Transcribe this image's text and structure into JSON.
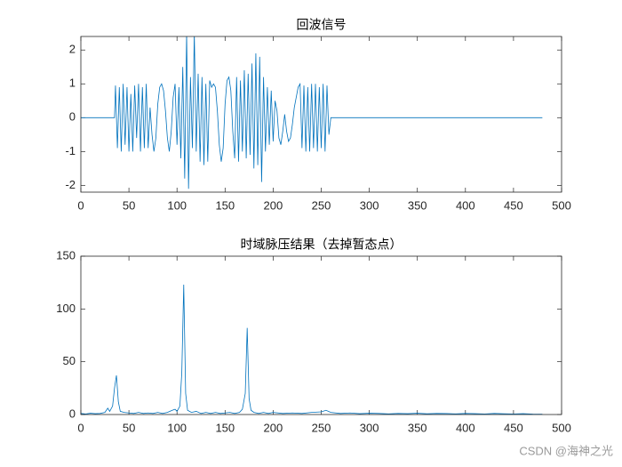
{
  "chart_data": [
    {
      "type": "line",
      "title": "回波信号",
      "color": "#0072bd",
      "x": [
        0,
        35,
        36,
        38,
        40,
        42,
        44,
        46,
        48,
        50,
        52,
        54,
        56,
        58,
        60,
        62,
        64,
        66,
        68,
        70,
        72,
        74,
        76,
        78,
        80,
        82,
        84,
        86,
        88,
        90,
        92,
        94,
        96,
        98,
        100,
        102,
        104,
        106,
        108,
        110,
        112,
        114,
        116,
        118,
        120,
        122,
        124,
        126,
        128,
        130,
        132,
        134,
        136,
        138,
        140,
        142,
        144,
        146,
        148,
        150,
        152,
        154,
        156,
        158,
        160,
        162,
        164,
        166,
        168,
        170,
        172,
        174,
        176,
        178,
        180,
        182,
        184,
        186,
        188,
        190,
        192,
        194,
        196,
        198,
        200,
        202,
        204,
        206,
        208,
        210,
        212,
        214,
        216,
        218,
        220,
        222,
        224,
        226,
        228,
        230,
        232,
        234,
        236,
        238,
        240,
        242,
        244,
        246,
        248,
        250,
        252,
        254,
        256,
        258,
        260,
        480
      ],
      "values": [
        0,
        0,
        0.95,
        -0.9,
        0.9,
        -1,
        1,
        -0.8,
        0.9,
        -1,
        0.7,
        -1,
        0.95,
        -0.6,
        1,
        -1,
        0.9,
        -0.9,
        1,
        -0.9,
        0.3,
        -0.5,
        -1,
        -0.6,
        0.4,
        0.9,
        1,
        0.8,
        0.2,
        -0.6,
        -1,
        -0.4,
        0.6,
        1,
        -0.8,
        0.9,
        -1.2,
        1.5,
        -1.8,
        2.5,
        -2.1,
        1.2,
        -0.9,
        2.5,
        -1.0,
        1.3,
        -1.3,
        1.2,
        -1.4,
        1.0,
        -1.3,
        1.1,
        0.9,
        1,
        0.9,
        0.2,
        -0.8,
        -1.3,
        -0.9,
        0.4,
        1.1,
        1.2,
        0.8,
        -0.4,
        -1.2,
        1.2,
        -1.3,
        1.1,
        -1.0,
        1.4,
        -1.2,
        1.3,
        -1.1,
        1.6,
        -1.5,
        1.9,
        -1.4,
        1.8,
        -1.9,
        1.2,
        -1.0,
        0.9,
        -0.8,
        0.8,
        -0.7,
        0.5,
        0.2,
        -0.6,
        -0.8,
        -0.4,
        0.1,
        -0.4,
        -0.7,
        -0.6,
        -0.2,
        0.3,
        0.6,
        0.9,
        1,
        -0.9,
        0.95,
        -1,
        0.9,
        -1,
        1,
        -0.9,
        1,
        -1,
        0.9,
        -0.9,
        1,
        -1,
        0.95,
        -0.5,
        0,
        0
      ],
      "xlim": [
        0,
        500
      ],
      "xticks": [
        0,
        50,
        100,
        150,
        200,
        250,
        300,
        350,
        400,
        450,
        500
      ],
      "ylim": [
        -2.2,
        2.4
      ],
      "yticks": [
        -2,
        -1,
        0,
        1,
        2
      ]
    },
    {
      "type": "line",
      "title": "时域脉压结果（去掉暂态点）",
      "color": "#0072bd",
      "x": [
        0,
        5,
        10,
        15,
        20,
        25,
        28,
        30,
        33,
        35,
        37,
        39,
        41,
        45,
        50,
        55,
        60,
        65,
        70,
        75,
        80,
        85,
        90,
        95,
        98,
        100,
        103,
        105,
        107,
        109,
        111,
        115,
        120,
        125,
        130,
        135,
        140,
        145,
        150,
        155,
        160,
        165,
        168,
        171,
        173,
        175,
        177,
        180,
        185,
        190,
        195,
        200,
        210,
        220,
        230,
        240,
        250,
        255,
        260,
        270,
        280,
        290,
        300,
        310,
        320,
        330,
        340,
        350,
        360,
        370,
        380,
        390,
        400,
        410,
        420,
        430,
        440,
        450,
        460,
        470,
        480
      ],
      "values": [
        1,
        0.5,
        1.2,
        0.8,
        1,
        2,
        6,
        3,
        8,
        25,
        37,
        12,
        3,
        2,
        1.5,
        1,
        2,
        1,
        1.5,
        1,
        2,
        1,
        2,
        4,
        5,
        3,
        8,
        40,
        123,
        20,
        4,
        2,
        3,
        1,
        2,
        1,
        2,
        1,
        1.5,
        2,
        1,
        2,
        5,
        20,
        82,
        15,
        4,
        2,
        1,
        2,
        1,
        2,
        1,
        1.5,
        1,
        2,
        2.5,
        4,
        2,
        1,
        1.5,
        0.8,
        1.2,
        1,
        0.6,
        1,
        0.8,
        1.2,
        0.7,
        1,
        0.9,
        0.6,
        1,
        0.8,
        0.5,
        1,
        0.7,
        0.5,
        0.8,
        0.4,
        0.3
      ],
      "xlim": [
        0,
        500
      ],
      "xticks": [
        0,
        50,
        100,
        150,
        200,
        250,
        300,
        350,
        400,
        450,
        500
      ],
      "ylim": [
        0,
        150
      ],
      "yticks": [
        0,
        50,
        100,
        150
      ]
    }
  ],
  "watermark": "CSDN @海神之光"
}
